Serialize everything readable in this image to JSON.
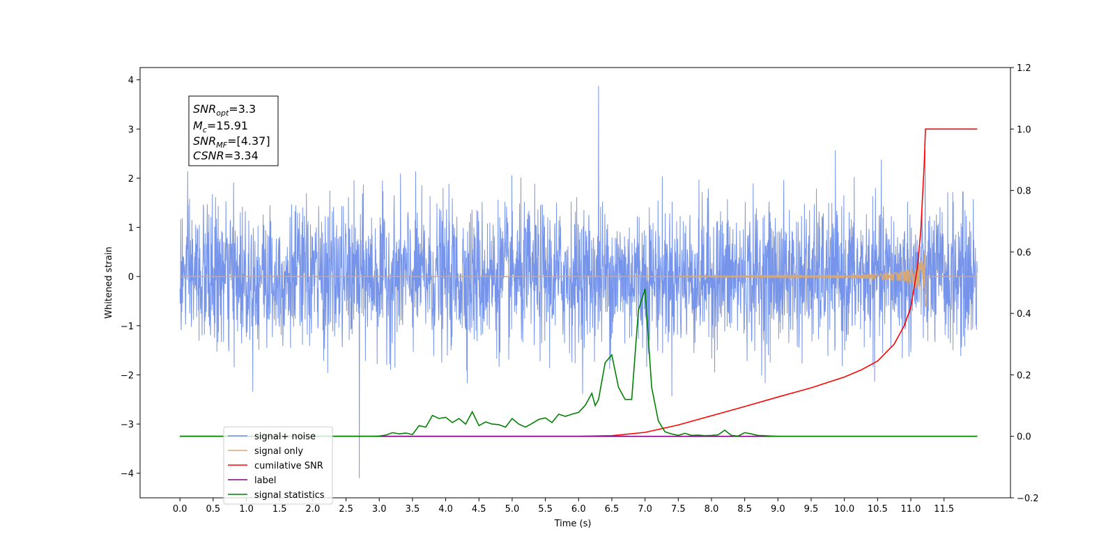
{
  "chart_data": {
    "type": "line",
    "xlabel": "Time (s)",
    "ylabel": "Whitened strain",
    "xlim": [
      -0.6,
      12.5
    ],
    "ylim": [
      -4.5,
      4.25
    ],
    "y2lim": [
      -0.2,
      1.2
    ],
    "xticks": [
      "0.0",
      "0.5",
      "1.0",
      "1.5",
      "2.0",
      "2.5",
      "3.0",
      "3.5",
      "4.0",
      "4.5",
      "5.0",
      "5.5",
      "6.0",
      "6.5",
      "7.0",
      "7.5",
      "8.0",
      "8.5",
      "9.0",
      "9.5",
      "10.0",
      "10.5",
      "11.0",
      "11.5"
    ],
    "yticks": [
      "−4",
      "−3",
      "−2",
      "−1",
      "0",
      "1",
      "2",
      "3",
      "4"
    ],
    "y2ticks": [
      "−0.2",
      "0.0",
      "0.2",
      "0.4",
      "0.6",
      "0.8",
      "1.0",
      "1.2"
    ],
    "legend_position": "lower-left",
    "annotation": {
      "lines": [
        {
          "base": "SNR",
          "sub": "opt",
          "rest": "=3.3"
        },
        {
          "base": "M",
          "sub": "c",
          "rest": "=15.91"
        },
        {
          "base": "SNR",
          "sub": "MF",
          "rest": "=[4.37]"
        },
        {
          "base": "CSNR",
          "sub": "",
          "rest": "=3.34"
        }
      ]
    },
    "series": [
      {
        "name": "signal+ noise",
        "color": "#6f8ee8",
        "axis": "left",
        "x_range": [
          0,
          12
        ],
        "envelope": [
          -2.0,
          2.0
        ],
        "peak": {
          "x": 6.3,
          "y": 3.88
        },
        "trough": {
          "x": 2.7,
          "y": -4.1
        }
      },
      {
        "name": "signal only",
        "color": "#d4a877",
        "axis": "left",
        "chirp_start": 7.5,
        "chirp_end": 11.22,
        "peak_amplitude": 0.55
      },
      {
        "name": "cumilative SNR",
        "color": "#ff0000",
        "axis": "right",
        "x": [
          0,
          6.0,
          6.5,
          7.0,
          7.5,
          8.0,
          8.5,
          9.0,
          9.5,
          10.0,
          10.25,
          10.5,
          10.75,
          10.9,
          11.0,
          11.1,
          11.15,
          11.2,
          11.22,
          11.3,
          12.0
        ],
        "values": [
          0,
          0,
          0.002,
          0.013,
          0.037,
          0.067,
          0.097,
          0.128,
          0.158,
          0.193,
          0.216,
          0.245,
          0.3,
          0.36,
          0.42,
          0.55,
          0.67,
          0.88,
          1.0,
          1.0,
          1.0
        ]
      },
      {
        "name": "label",
        "color": "#800080",
        "axis": "right",
        "x": [
          0,
          12
        ],
        "values": [
          0,
          0
        ]
      },
      {
        "name": "signal statistics",
        "color": "#008000",
        "axis": "right",
        "x": [
          0,
          2.9,
          3.0,
          3.1,
          3.2,
          3.3,
          3.4,
          3.5,
          3.6,
          3.7,
          3.8,
          3.9,
          4.0,
          4.1,
          4.2,
          4.3,
          4.4,
          4.5,
          4.6,
          4.7,
          4.8,
          4.9,
          5.0,
          5.1,
          5.2,
          5.3,
          5.4,
          5.5,
          5.6,
          5.7,
          5.8,
          5.9,
          6.0,
          6.1,
          6.2,
          6.25,
          6.3,
          6.4,
          6.5,
          6.6,
          6.7,
          6.8,
          6.9,
          7.0,
          7.1,
          7.2,
          7.3,
          7.4,
          7.5,
          7.6,
          7.7,
          7.8,
          7.9,
          8.0,
          8.1,
          8.2,
          8.3,
          8.4,
          8.5,
          8.6,
          8.7,
          8.8,
          8.9,
          9.0,
          9.1,
          12.0
        ],
        "values": [
          0,
          0,
          0.001,
          0.004,
          0.012,
          0.008,
          0.011,
          0.006,
          0.035,
          0.03,
          0.068,
          0.058,
          0.062,
          0.045,
          0.058,
          0.04,
          0.08,
          0.035,
          0.047,
          0.04,
          0.038,
          0.03,
          0.058,
          0.04,
          0.03,
          0.042,
          0.055,
          0.06,
          0.045,
          0.072,
          0.065,
          0.072,
          0.078,
          0.101,
          0.14,
          0.1,
          0.12,
          0.24,
          0.265,
          0.16,
          0.12,
          0.12,
          0.41,
          0.48,
          0.16,
          0.05,
          0.015,
          0.008,
          0.003,
          0.01,
          0.003,
          0.004,
          0.002,
          0.003,
          0.005,
          0.02,
          0.003,
          0.001,
          0.012,
          0.008,
          0.003,
          0.002,
          0.001,
          0.0,
          0.0,
          0.0
        ]
      }
    ]
  }
}
